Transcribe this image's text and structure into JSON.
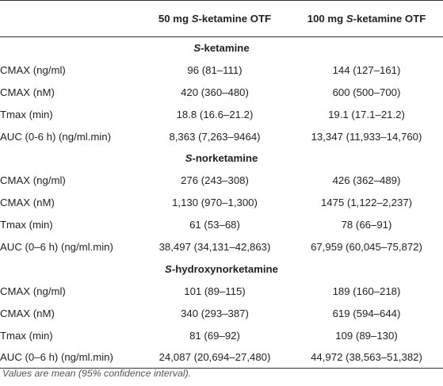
{
  "table": {
    "columns": [
      {
        "prefix": "50 mg ",
        "italic": "S",
        "suffix": "-ketamine OTF"
      },
      {
        "prefix": "100 mg ",
        "italic": "S",
        "suffix": "-ketamine OTF"
      }
    ],
    "sections": [
      {
        "heading_italic": "S",
        "heading_rest": "-ketamine",
        "rows": [
          {
            "label": "CMAX (ng/ml)",
            "v50": "96 (81–111)",
            "v100": "144 (127–161)"
          },
          {
            "label": "CMAX (nM)",
            "v50": "420 (360–480)",
            "v100": "600 (500–700)"
          },
          {
            "label": "Tmax (min)",
            "v50": "18.8 (16.6–21.2)",
            "v100": "19.1 (17.1–21.2)"
          },
          {
            "label": "AUC (0-6 h) (ng/ml.min)",
            "v50": "8,363 (7,263–9464)",
            "v100": "13,347 (11,933–14,760)"
          }
        ]
      },
      {
        "heading_italic": "S",
        "heading_rest": "-norketamine",
        "rows": [
          {
            "label": "CMAX (ng/ml)",
            "v50": "276 (243–308)",
            "v100": "426 (362–489)"
          },
          {
            "label": "CMAX (nM)",
            "v50": "1,130 (970–1,300)",
            "v100": "1475 (1,122–2,237)"
          },
          {
            "label": "Tmax (min)",
            "v50": "61 (53–68)",
            "v100": "78 (66–91)"
          },
          {
            "label": "AUC (0–6 h) (ng/ml.min)",
            "v50": "38,497 (34,131–42,863)",
            "v100": "67,959 (60,045–75,872)"
          }
        ]
      },
      {
        "heading_italic": "S",
        "heading_rest": "-hydroxynorketamine",
        "rows": [
          {
            "label": "CMAX (ng/ml)",
            "v50": "101 (89–115)",
            "v100": "189 (160–218)"
          },
          {
            "label": "CMAX (nM)",
            "v50": "340 (293–387)",
            "v100": "619 (594–644)"
          },
          {
            "label": "Tmax (min)",
            "v50": "81 (69–92)",
            "v100": "109 (89–130)"
          },
          {
            "label": "AUC (0–6 h) (ng/ml.min)",
            "v50": "24,087 (20,694–27,480)",
            "v100": "44,972 (38,563–51,382)"
          }
        ]
      }
    ]
  },
  "footnote": "Values are mean (95% confidence interval)."
}
